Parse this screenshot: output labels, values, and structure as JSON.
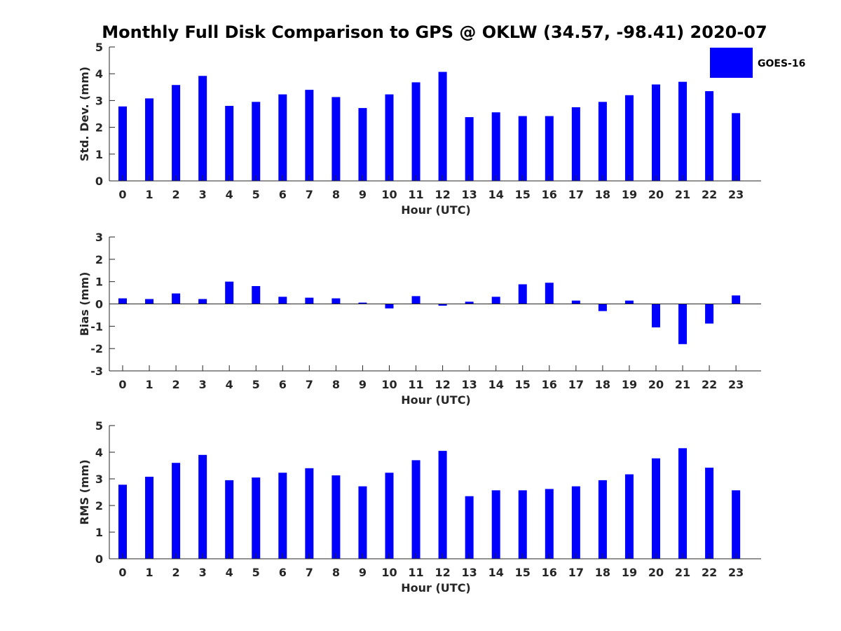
{
  "title": "Monthly Full Disk Comparison to GPS @ OKLW (34.57, -98.41) 2020-07",
  "legend": {
    "label": "GOES-16",
    "color": "#0000ff"
  },
  "bar_color": "#0000ff",
  "chart_data": [
    {
      "type": "bar",
      "name": "std-dev-chart",
      "title": "Monthly Full Disk Comparison to GPS @ OKLW (34.57, -98.41) 2020-07",
      "xlabel": "Hour (UTC)",
      "ylabel": "Std. Dev. (mm)",
      "ylim": [
        0,
        5
      ],
      "yticks": [
        "0",
        "1",
        "2",
        "3",
        "4",
        "5"
      ],
      "categories": [
        "0",
        "1",
        "2",
        "3",
        "4",
        "5",
        "6",
        "7",
        "8",
        "9",
        "10",
        "11",
        "12",
        "13",
        "14",
        "15",
        "16",
        "17",
        "18",
        "19",
        "20",
        "21",
        "22",
        "23"
      ],
      "series": [
        {
          "name": "GOES-16",
          "values": [
            2.78,
            3.08,
            3.58,
            3.92,
            2.8,
            2.95,
            3.23,
            3.4,
            3.13,
            2.72,
            3.23,
            3.68,
            4.07,
            2.38,
            2.56,
            2.42,
            2.42,
            2.75,
            2.95,
            3.2,
            3.6,
            3.7,
            3.35,
            2.53
          ]
        }
      ]
    },
    {
      "type": "bar",
      "name": "bias-chart",
      "xlabel": "Hour (UTC)",
      "ylabel": "Bias (mm)",
      "ylim": [
        -3,
        3
      ],
      "yticks": [
        "-3",
        "-2",
        "-1",
        "0",
        "1",
        "2",
        "3"
      ],
      "zero_line": true,
      "categories": [
        "0",
        "1",
        "2",
        "3",
        "4",
        "5",
        "6",
        "7",
        "8",
        "9",
        "10",
        "11",
        "12",
        "13",
        "14",
        "15",
        "16",
        "17",
        "18",
        "19",
        "20",
        "21",
        "22",
        "23"
      ],
      "series": [
        {
          "name": "GOES-16",
          "values": [
            0.25,
            0.22,
            0.47,
            0.22,
            1.0,
            0.8,
            0.32,
            0.28,
            0.25,
            0.06,
            -0.2,
            0.35,
            -0.08,
            0.1,
            0.32,
            0.88,
            0.95,
            0.15,
            -0.32,
            0.15,
            -1.05,
            -1.8,
            -0.88,
            0.38
          ]
        }
      ]
    },
    {
      "type": "bar",
      "name": "rms-chart",
      "xlabel": "Hour (UTC)",
      "ylabel": "RMS (mm)",
      "ylim": [
        0,
        5
      ],
      "yticks": [
        "0",
        "1",
        "2",
        "3",
        "4",
        "5"
      ],
      "categories": [
        "0",
        "1",
        "2",
        "3",
        "4",
        "5",
        "6",
        "7",
        "8",
        "9",
        "10",
        "11",
        "12",
        "13",
        "14",
        "15",
        "16",
        "17",
        "18",
        "19",
        "20",
        "21",
        "22",
        "23"
      ],
      "series": [
        {
          "name": "GOES-16",
          "values": [
            2.78,
            3.08,
            3.6,
            3.9,
            2.95,
            3.05,
            3.23,
            3.4,
            3.13,
            2.72,
            3.23,
            3.7,
            4.05,
            2.35,
            2.57,
            2.57,
            2.62,
            2.72,
            2.95,
            3.17,
            3.77,
            4.15,
            3.42,
            2.57
          ]
        }
      ]
    }
  ]
}
